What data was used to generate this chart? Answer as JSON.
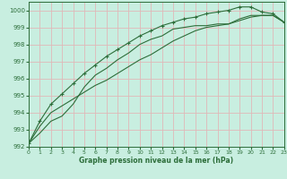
{
  "xlabel": "Graphe pression niveau de la mer (hPa)",
  "ylabel": "",
  "background_color": "#c8eee0",
  "grid_color": "#e0b8b8",
  "line_color": "#2d6e3a",
  "xlim": [
    0,
    23
  ],
  "ylim": [
    992,
    1000.5
  ],
  "yticks": [
    992,
    993,
    994,
    995,
    996,
    997,
    998,
    999,
    1000
  ],
  "xticks": [
    0,
    1,
    2,
    3,
    4,
    5,
    6,
    7,
    8,
    9,
    10,
    11,
    12,
    13,
    14,
    15,
    16,
    17,
    18,
    19,
    20,
    21,
    22,
    23
  ],
  "series1": [
    992.2,
    992.8,
    993.5,
    993.8,
    994.5,
    995.5,
    996.2,
    996.6,
    997.1,
    997.5,
    998.0,
    998.3,
    998.5,
    998.9,
    999.0,
    999.1,
    999.1,
    999.2,
    999.2,
    999.5,
    999.7,
    999.7,
    999.7,
    999.3
  ],
  "series2": [
    992.2,
    993.5,
    994.5,
    995.1,
    995.7,
    996.3,
    996.8,
    997.3,
    997.7,
    998.1,
    998.5,
    998.8,
    999.1,
    999.3,
    999.5,
    999.6,
    999.8,
    999.9,
    1000.0,
    1000.2,
    1000.2,
    999.9,
    999.8,
    999.3
  ],
  "series3": [
    992.2,
    993.2,
    994.0,
    994.4,
    994.8,
    995.2,
    995.6,
    995.9,
    996.3,
    996.7,
    997.1,
    997.4,
    997.8,
    998.2,
    998.5,
    998.8,
    999.0,
    999.1,
    999.2,
    999.4,
    999.6,
    999.7,
    999.7,
    999.3
  ]
}
